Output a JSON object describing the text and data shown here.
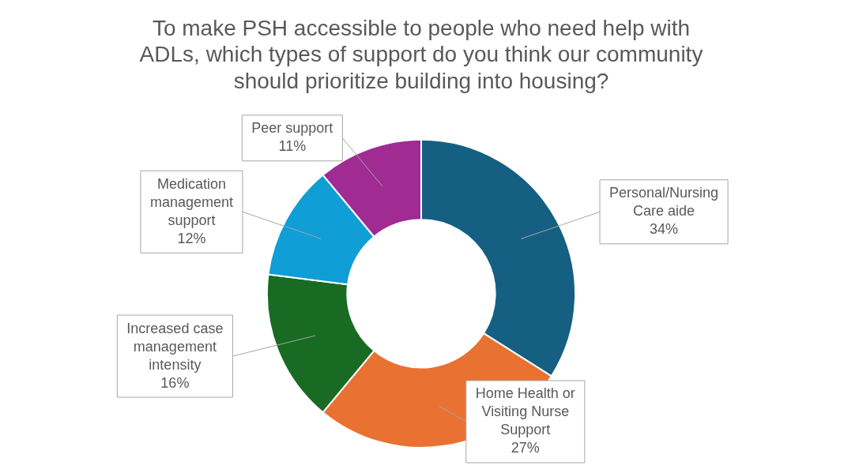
{
  "chart_data": {
    "type": "donut",
    "title": "To make PSH accessible to people who need help with ADLs, which types of support do you think our community should prioritize building into housing?",
    "categories": [
      "Personal/Nursing Care aide",
      "Home Health or Visiting Nurse Support",
      "Increased case management intensity",
      "Medication management support",
      "Peer support"
    ],
    "values": [
      34,
      27,
      16,
      12,
      11
    ],
    "colors": [
      "#156082",
      "#e97132",
      "#196b24",
      "#0f9ed5",
      "#a02b93"
    ],
    "value_labels": [
      "34%",
      "27%",
      "16%",
      "12%",
      "11%"
    ],
    "legend": false
  }
}
